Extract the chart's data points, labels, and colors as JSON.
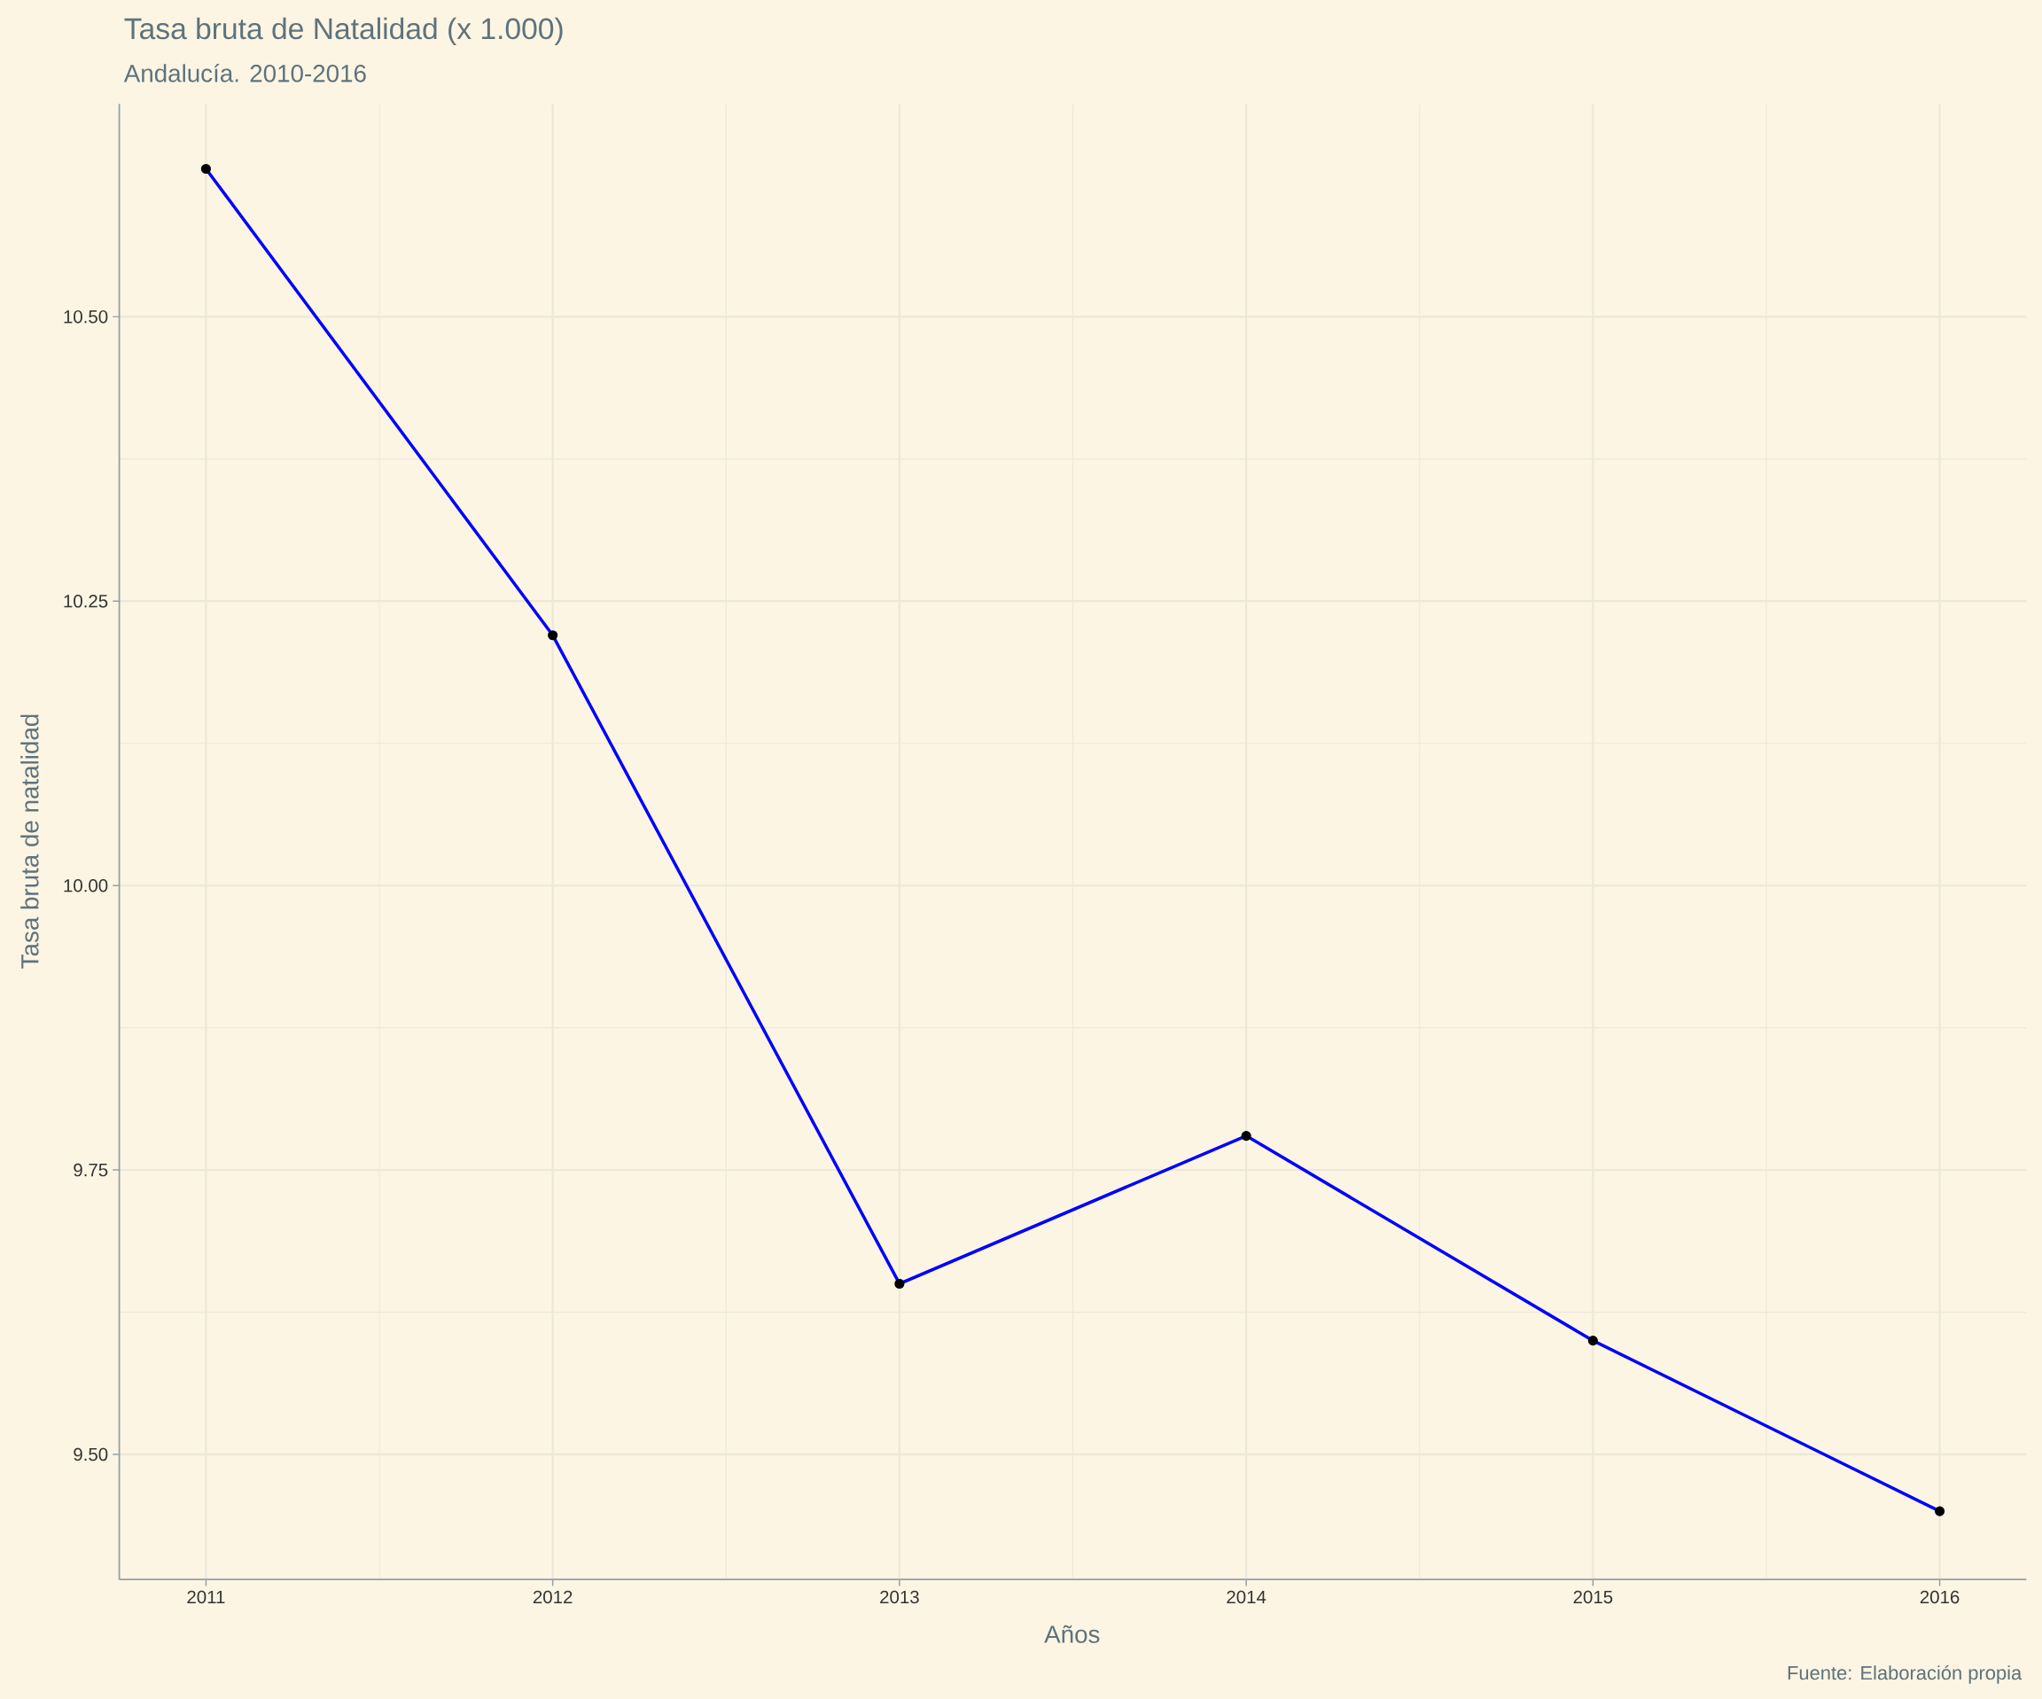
{
  "chart_data": {
    "type": "line",
    "title": "Tasa bruta de Natalidad (x 1.000)",
    "subtitle": "Andalucía. 2010-2016",
    "xlabel": "Años",
    "ylabel": "Tasa bruta de natalidad",
    "annotations": [
      "Fuente: Elaboración propia"
    ],
    "x": [
      2011,
      2012,
      2013,
      2014,
      2015,
      2016
    ],
    "series": [
      {
        "color": "#0000ff",
        "values": [
          10.63,
          10.22,
          9.65,
          9.78,
          9.6,
          9.45
        ]
      }
    ],
    "xlim": [
      2010.75,
      2016.25
    ],
    "xticks": [
      2011,
      2012,
      2013,
      2014,
      2015,
      2016
    ],
    "ylim": [
      9.39,
      10.687
    ],
    "yticks": [
      {
        "value": 9.5,
        "label": "9.50"
      },
      {
        "value": 9.75,
        "label": "9.75"
      },
      {
        "value": 10,
        "label": "10.00"
      },
      {
        "value": 10.25,
        "label": "10.25"
      },
      {
        "value": 10.5,
        "label": "10.50"
      }
    ],
    "grid": true,
    "marker": "circle",
    "line_style": "solid",
    "legend": false
  }
}
